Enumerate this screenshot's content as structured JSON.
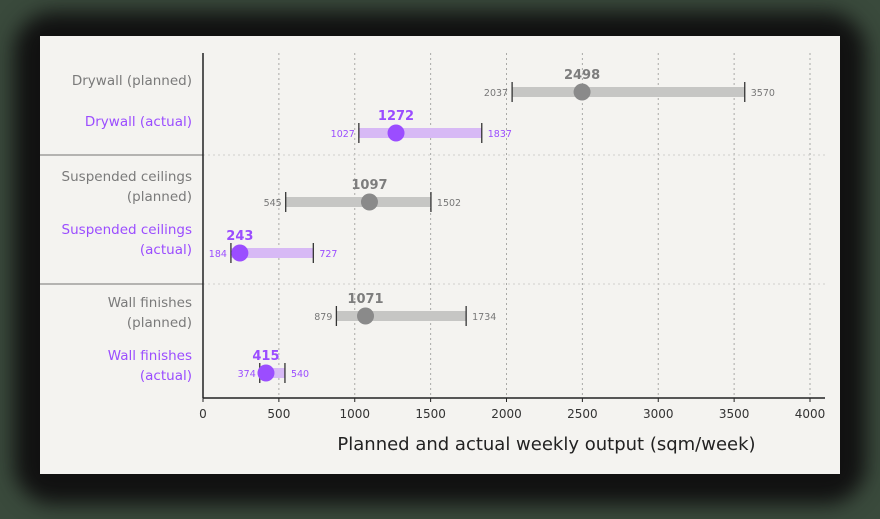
{
  "chart_data": {
    "type": "range-dot",
    "title": "",
    "xlabel": "Planned and actual weekly output (sqm/week)",
    "ylabel": "",
    "xlim": [
      0,
      4000
    ],
    "xticks": [
      0,
      500,
      1000,
      1500,
      2000,
      2500,
      3000,
      3500,
      4000
    ],
    "grid": "vertical dotted",
    "colors": {
      "planned": "#8a8a8a",
      "planned_bar": "#c6c6c4",
      "actual": "#9b4dff",
      "actual_bar": "#d7b9f5"
    },
    "series": [
      {
        "label": "Drywall (planned)",
        "group": "Drywall",
        "kind": "planned",
        "min": 2037,
        "value": 2498,
        "max": 3570
      },
      {
        "label": "Drywall (actual)",
        "group": "Drywall",
        "kind": "actual",
        "min": 1027,
        "value": 1272,
        "max": 1837
      },
      {
        "label": "Suspended ceilings (planned)",
        "group": "Suspended ceilings",
        "kind": "planned",
        "min": 545,
        "value": 1097,
        "max": 1502
      },
      {
        "label": "Suspended ceilings (actual)",
        "group": "Suspended ceilings",
        "kind": "actual",
        "min": 184,
        "value": 243,
        "max": 727
      },
      {
        "label": "Wall finishes (planned)",
        "group": "Wall finishes",
        "kind": "planned",
        "min": 879,
        "value": 1071,
        "max": 1734
      },
      {
        "label": "Wall finishes (actual)",
        "group": "Wall finishes",
        "kind": "actual",
        "min": 374,
        "value": 415,
        "max": 540
      }
    ],
    "row_labels": [
      [
        "Drywall (planned)"
      ],
      [
        "Drywall (actual)"
      ],
      [
        "Suspended ceilings",
        "(planned)"
      ],
      [
        "Suspended ceilings",
        "(actual)"
      ],
      [
        "Wall finishes",
        "(planned)"
      ],
      [
        "Wall finishes",
        "(actual)"
      ]
    ]
  }
}
